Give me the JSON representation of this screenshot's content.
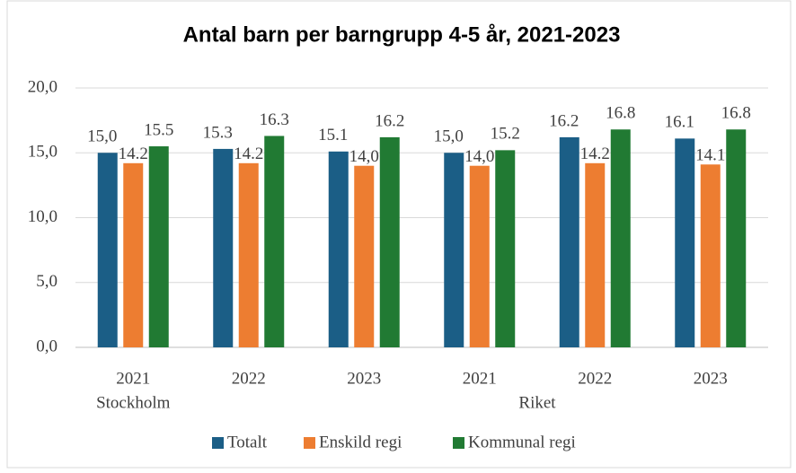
{
  "chart_data": {
    "type": "bar",
    "title": "Antal barn per barngrupp 4-5 år, 2021-2023",
    "groups": [
      {
        "name": "Stockholm",
        "categories": [
          "2021",
          "2022",
          "2023"
        ]
      },
      {
        "name": "Riket",
        "categories": [
          "2021",
          "2022",
          "2023"
        ]
      }
    ],
    "series": [
      {
        "name": "Totalt",
        "color": "#1b5e86",
        "values": [
          15.0,
          15.3,
          15.1,
          15.0,
          16.2,
          16.1
        ],
        "value_labels": [
          "15,0",
          "15.3",
          "15.1",
          "15,0",
          "16.2",
          "16.1"
        ]
      },
      {
        "name": "Enskild regi",
        "color": "#ed7d31",
        "values": [
          14.2,
          14.2,
          14.0,
          14.0,
          14.2,
          14.1
        ],
        "value_labels": [
          "14.2",
          "14.2",
          "14,0",
          "14,0",
          "14.2",
          "14.1"
        ]
      },
      {
        "name": "Kommunal regi",
        "color": "#217a33",
        "values": [
          15.5,
          16.3,
          16.2,
          15.2,
          16.8,
          16.8
        ],
        "value_labels": [
          "15.5",
          "16.3",
          "16.2",
          "15.2",
          "16.8",
          "16.8"
        ]
      }
    ],
    "ylim": [
      0,
      20
    ],
    "yticks": [
      {
        "value": 0,
        "label": "0,0"
      },
      {
        "value": 5,
        "label": "5,0"
      },
      {
        "value": 10,
        "label": "10,0"
      },
      {
        "value": 15,
        "label": "15,0"
      },
      {
        "value": 20,
        "label": "20,0"
      }
    ],
    "grid": true,
    "legend": "bottom"
  }
}
